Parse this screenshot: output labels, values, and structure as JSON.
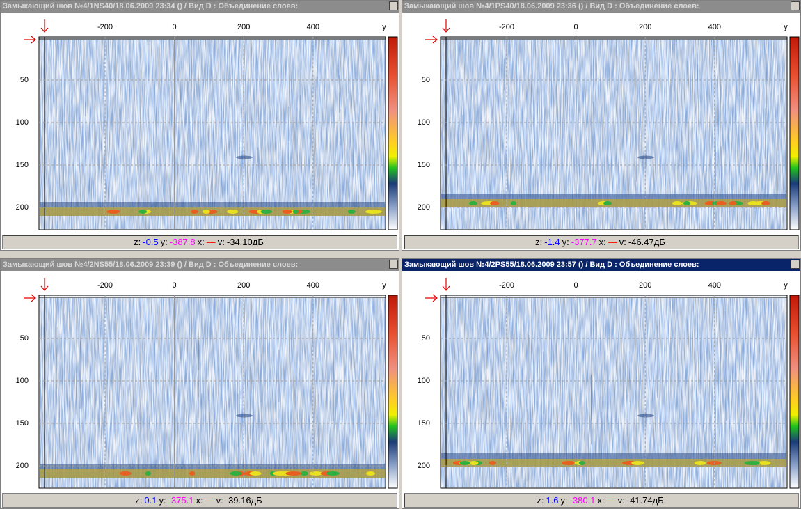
{
  "panels": [
    {
      "title": "Замыкающий шов №4/1NS40/18.06.2009 23:34 () / Вид D : Объединение слоев:",
      "active": false,
      "x_ticks": [
        "-200",
        "0",
        "200",
        "400",
        "y"
      ],
      "y_ticks": [
        "50",
        "100",
        "150",
        "200"
      ],
      "status": {
        "z_label": "z:",
        "z": "-0.5",
        "y_label": "y:",
        "y": "-387.8",
        "x_label": "x:",
        "x": "—",
        "v_label": "v:",
        "v": "-34.10дБ"
      }
    },
    {
      "title": "Замыкающий шов №4/1PS40/18.06.2009 23:36 () / Вид D : Объединение слоев:",
      "active": false,
      "x_ticks": [
        "-200",
        "0",
        "200",
        "400",
        "y"
      ],
      "y_ticks": [
        "50",
        "100",
        "150",
        "200"
      ],
      "status": {
        "z_label": "z:",
        "z": "-1.4",
        "y_label": "y:",
        "y": "-377.7",
        "x_label": "x:",
        "x": "—",
        "v_label": "v:",
        "v": "-46.47дБ"
      }
    },
    {
      "title": "Замыкающий шов №4/2NS55/18.06.2009 23:39 () / Вид D : Объединение слоев:",
      "active": false,
      "x_ticks": [
        "-200",
        "0",
        "200",
        "400",
        "y"
      ],
      "y_ticks": [
        "50",
        "100",
        "150",
        "200"
      ],
      "status": {
        "z_label": "z:",
        "z": "0.1",
        "y_label": "y:",
        "y": "-375.1",
        "x_label": "x:",
        "x": "—",
        "v_label": "v:",
        "v": "-39.16дБ"
      }
    },
    {
      "title": "Замыкающий шов №4/2PS55/18.06.2009 23:57 () / Вид D : Объединение слоев:",
      "active": true,
      "x_ticks": [
        "-200",
        "0",
        "200",
        "400",
        "y"
      ],
      "y_ticks": [
        "50",
        "100",
        "150",
        "200"
      ],
      "status": {
        "z_label": "z:",
        "z": "1.6",
        "y_label": "y:",
        "y": "-380.1",
        "x_label": "x:",
        "x": "—",
        "v_label": "v:",
        "v": "-41.74дБ"
      }
    }
  ]
}
